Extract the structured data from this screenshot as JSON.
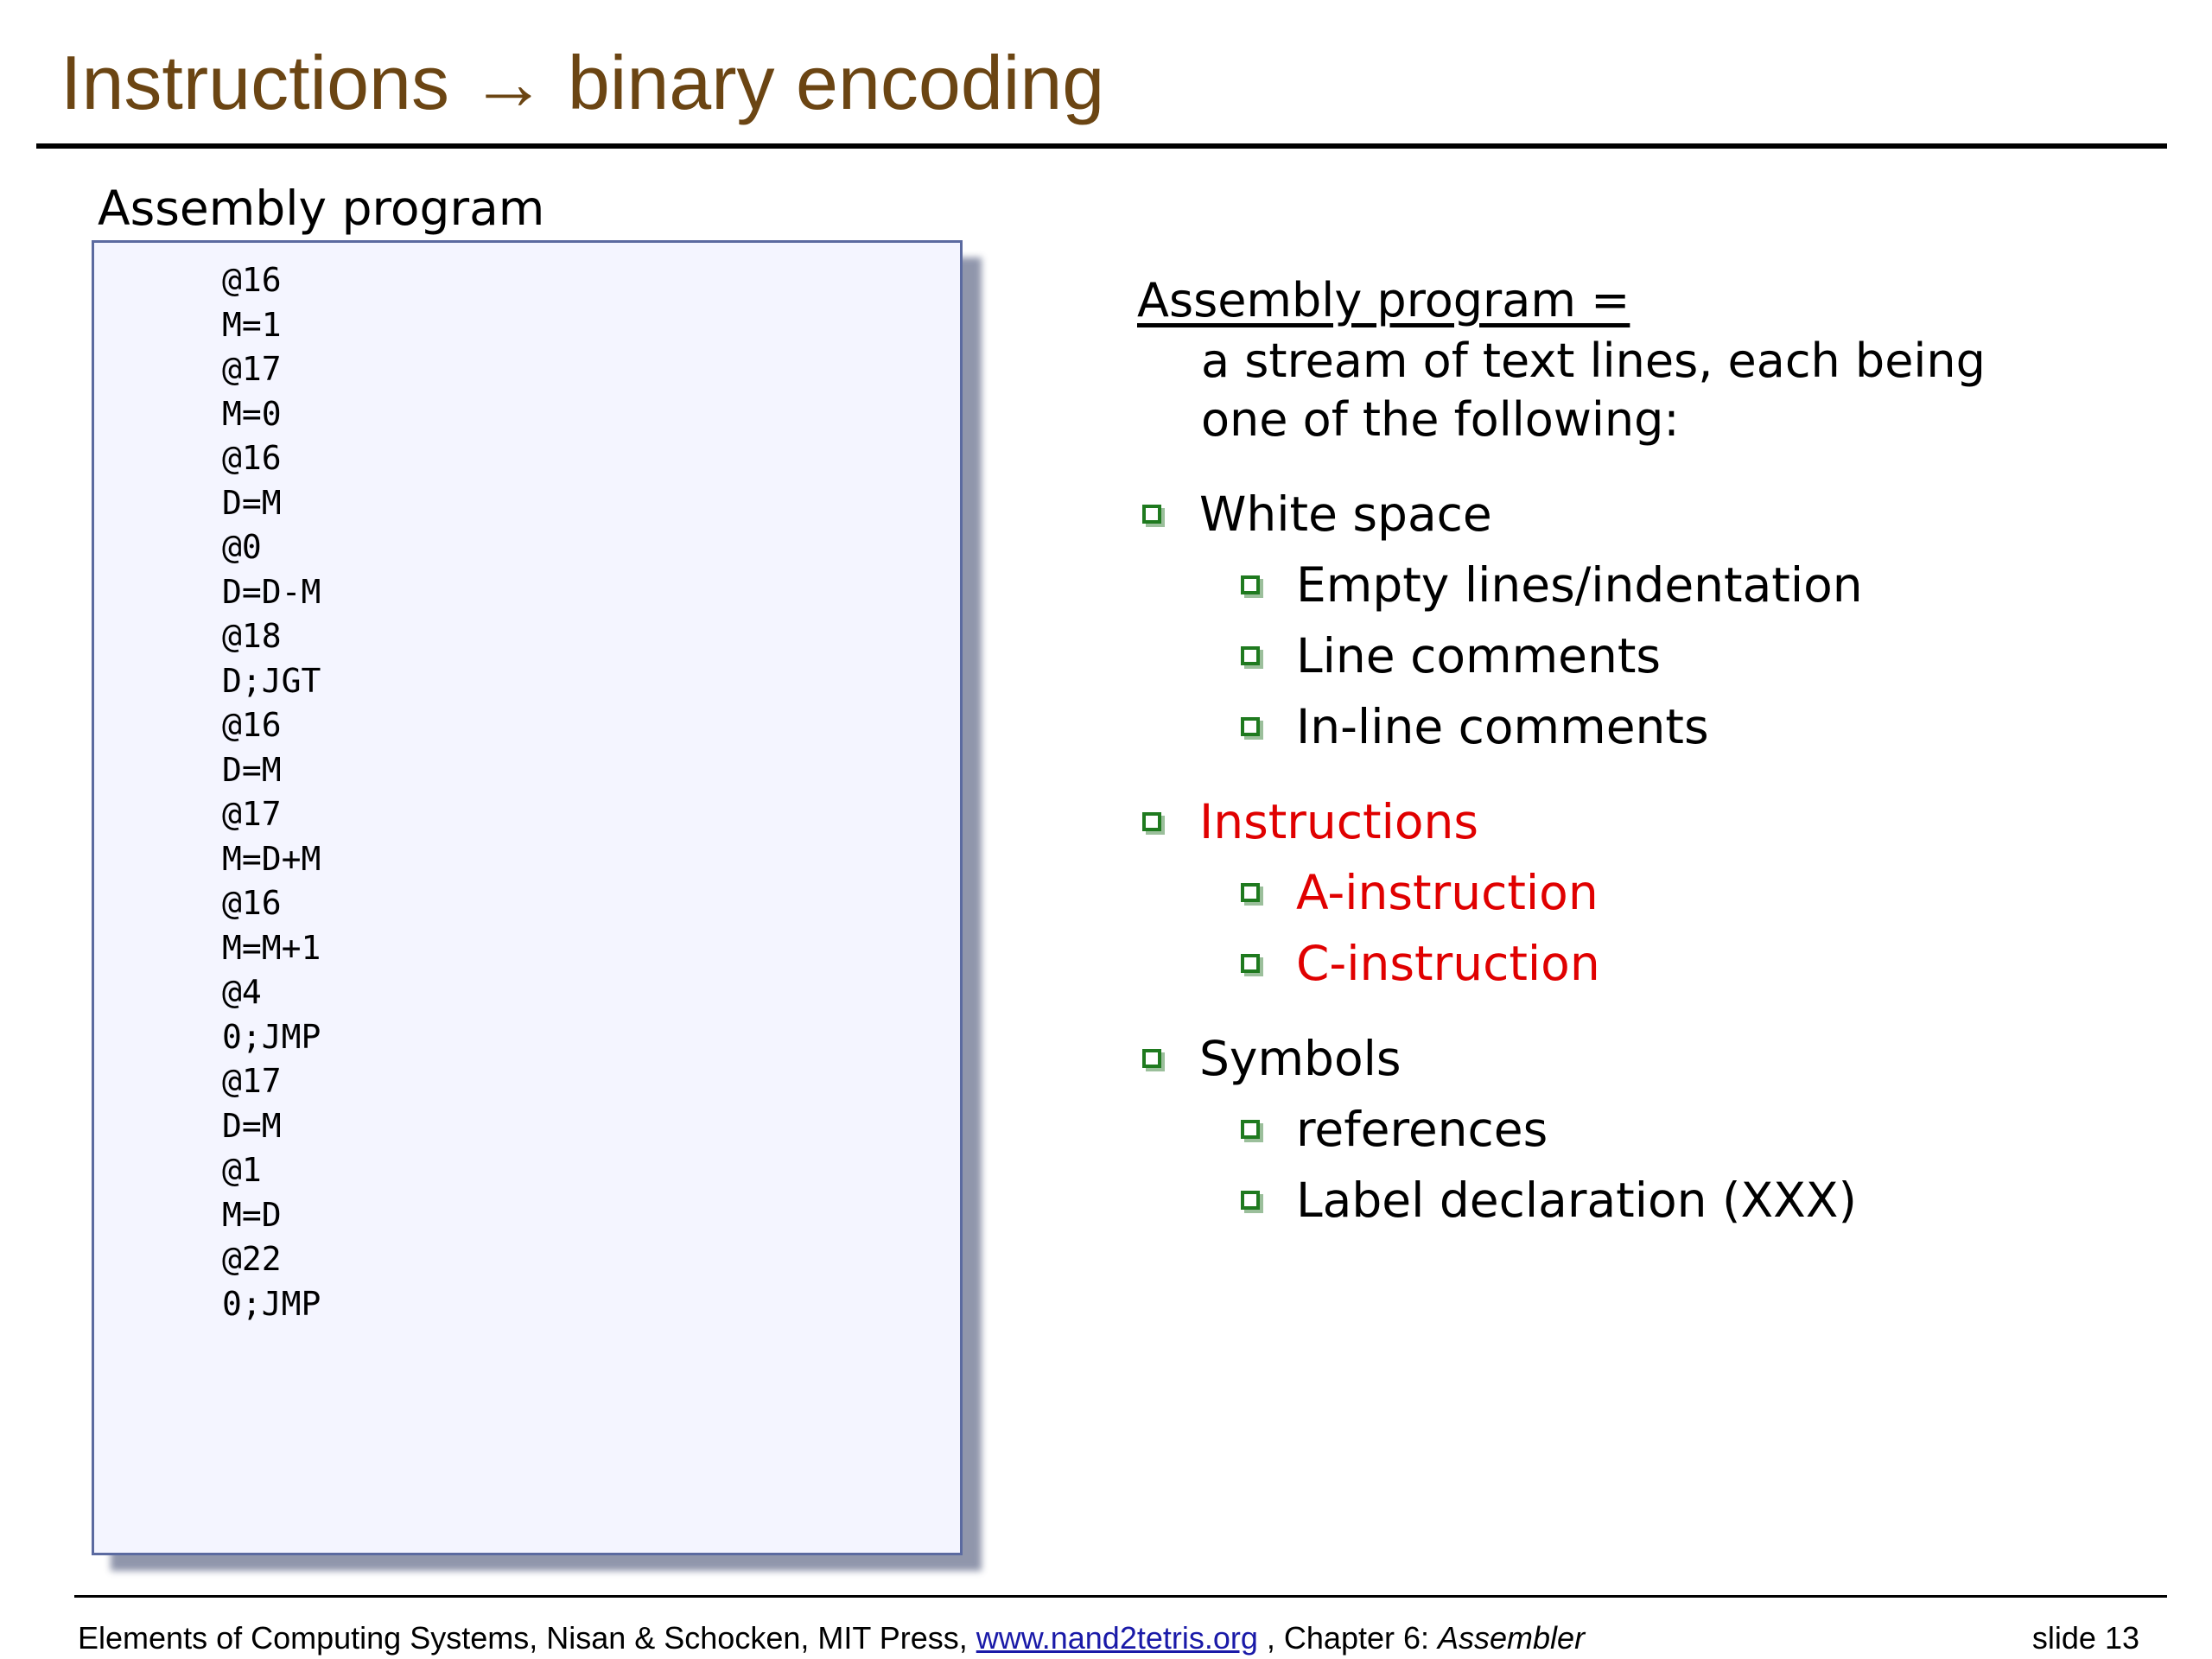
{
  "slide": {
    "title": "Instructions → binary encoding",
    "panel_label": "Assembly program"
  },
  "code_lines": [
    "@16",
    "M=1",
    "@17",
    "M=0",
    "@16",
    "D=M",
    "@0",
    "D=D-M",
    "@18",
    "D;JGT",
    "@16",
    "D=M",
    "@17",
    "M=D+M",
    "@16",
    "M=M+1",
    "@4",
    "0;JMP",
    "@17",
    "D=M",
    "@1",
    "M=D",
    "@22",
    "0;JMP"
  ],
  "definition": {
    "heading": "Assembly program =",
    "line1": "a stream of text lines, each being",
    "line2": "one of the following:"
  },
  "bullets": {
    "white_space": "White space",
    "empty_lines": "Empty lines/indentation",
    "line_comments": "Line comments",
    "inline_comments": "In-line comments",
    "instructions": "Instructions",
    "a_instruction": "A-instruction",
    "c_instruction": "C-instruction",
    "symbols": "Symbols",
    "references": "references",
    "label_declaration": "Label declaration (XXX)"
  },
  "footer": {
    "prefix": "Elements of Computing Systems, Nisan & Schocken, MIT Press, ",
    "link": "www.nand2tetris.org",
    "middle": " , Chapter 6: ",
    "chapter": "Assembler",
    "slide_number": "slide 13"
  },
  "colors": {
    "title": "#6b4513",
    "highlight": "#e00000",
    "bullet": "#1f7a1f",
    "panel_bg": "#f4f5ff"
  }
}
